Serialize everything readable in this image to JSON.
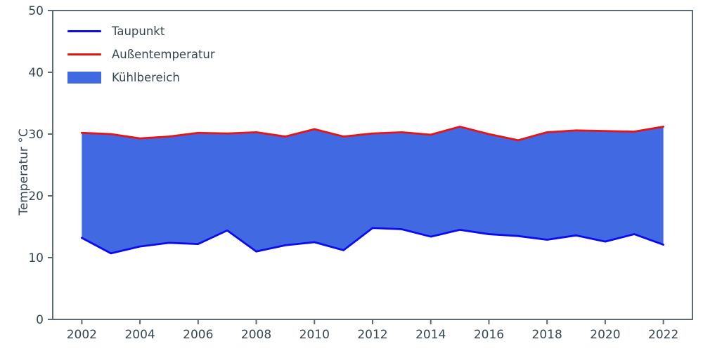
{
  "chart_data": {
    "type": "area",
    "title": "",
    "ylabel": "Temperatur °C",
    "xlabel": "",
    "grid": false,
    "legend_position": "upper-left",
    "xlim": [
      2001,
      2023
    ],
    "ylim": [
      0,
      50
    ],
    "xticks": [
      2002,
      2004,
      2006,
      2008,
      2010,
      2012,
      2014,
      2016,
      2018,
      2020,
      2022
    ],
    "yticks": [
      0,
      10,
      20,
      30,
      40,
      50
    ],
    "x": [
      2002,
      2003,
      2004,
      2005,
      2006,
      2007,
      2008,
      2009,
      2010,
      2011,
      2012,
      2013,
      2014,
      2015,
      2016,
      2017,
      2018,
      2019,
      2020,
      2021,
      2022
    ],
    "series": [
      {
        "name": "Taupunkt",
        "color": "#0b0bee",
        "values": [
          13.2,
          10.7,
          11.8,
          12.4,
          12.2,
          14.4,
          11.0,
          12.0,
          12.5,
          11.2,
          14.8,
          14.6,
          13.4,
          14.5,
          13.8,
          13.5,
          12.9,
          13.6,
          12.6,
          13.8,
          12.1
        ]
      },
      {
        "name": "Außentemperatur",
        "color": "#e81414",
        "values": [
          30.2,
          30.0,
          29.3,
          29.6,
          30.2,
          30.1,
          30.3,
          29.6,
          30.8,
          29.6,
          30.1,
          30.3,
          29.9,
          31.2,
          30.0,
          29.0,
          30.3,
          30.6,
          30.5,
          30.4,
          31.2
        ]
      }
    ],
    "fill_between": {
      "name": "Kühlbereich",
      "color": "#4169e1"
    }
  },
  "legend": {
    "items": [
      {
        "label": "Taupunkt",
        "swatch": "line",
        "color": "#0b0bee"
      },
      {
        "label": "Außentemperatur",
        "swatch": "line",
        "color": "#e81414"
      },
      {
        "label": "Kühlbereich",
        "swatch": "patch",
        "color": "#4169e1"
      }
    ]
  },
  "colors": {
    "text": "#37474f",
    "spine": "#5c6b73",
    "background": "#ffffff"
  }
}
